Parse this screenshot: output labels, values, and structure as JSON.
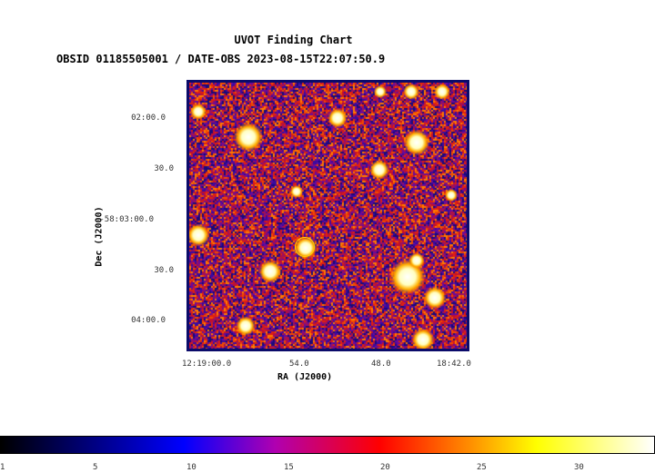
{
  "header": {
    "title": "UVOT Finding Chart",
    "subtitle": "OBSID 01185505001 / DATE-OBS 2023-08-15T22:07:50.9"
  },
  "axes": {
    "y_label": "Dec (J2000)",
    "x_label": "RA (J2000)",
    "y_ticks": [
      "02:00.0",
      "30.0",
      "-58:03:00.0",
      "30.0",
      "04:00.0"
    ],
    "x_ticks": [
      "12:19:00.0",
      "54.0",
      "48.0",
      "18:42.0"
    ]
  },
  "colorbar": {
    "ticks": [
      "1",
      "5",
      "10",
      "15",
      "20",
      "25",
      "30"
    ],
    "colormap": [
      "#000000",
      "#0000ff",
      "#b000b0",
      "#ff0000",
      "#ff9000",
      "#ffff00",
      "#ffffff"
    ]
  },
  "colors": {
    "frame": "#0b0b6a",
    "marker": "#ffd700"
  }
}
